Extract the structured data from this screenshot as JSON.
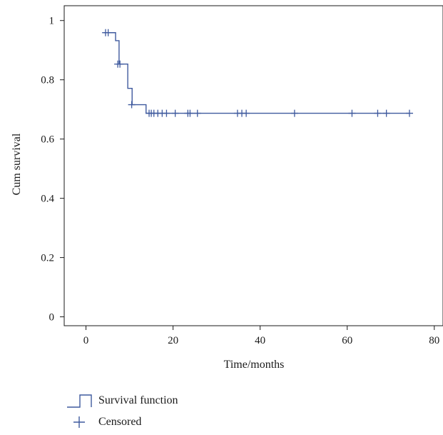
{
  "chart_data": {
    "type": "line",
    "step": true,
    "xlabel": "Time/months",
    "ylabel": "Cum survival",
    "xlim": [
      -5,
      82
    ],
    "ylim": [
      -0.03,
      1.05
    ],
    "xticks": [
      0,
      20,
      40,
      60,
      80
    ],
    "xtick_labels": [
      "0",
      "20",
      "40",
      "60",
      "80"
    ],
    "yticks": [
      0,
      0.2,
      0.4,
      0.6,
      0.8,
      1
    ],
    "ytick_labels": [
      "0",
      "0.2",
      "0.4",
      "0.6",
      "0.8",
      "1"
    ],
    "grid": false,
    "legend_position": "bottom-left",
    "color": "#3f5a9e",
    "series": [
      {
        "name": "Survival function",
        "steps": [
          {
            "x": 4.0,
            "y": 0.959
          },
          {
            "x": 6.8,
            "y": 0.932
          },
          {
            "x": 7.6,
            "y": 0.853
          },
          {
            "x": 9.6,
            "y": 0.771
          },
          {
            "x": 10.6,
            "y": 0.716
          },
          {
            "x": 13.8,
            "y": 0.687
          },
          {
            "x": 74.3,
            "y": 0.687
          }
        ]
      },
      {
        "name": "Censored",
        "points": [
          {
            "x": 4.5,
            "y": 0.959
          },
          {
            "x": 5.1,
            "y": 0.959
          },
          {
            "x": 7.3,
            "y": 0.853
          },
          {
            "x": 7.8,
            "y": 0.853
          },
          {
            "x": 10.5,
            "y": 0.716
          },
          {
            "x": 14.5,
            "y": 0.687
          },
          {
            "x": 15.0,
            "y": 0.687
          },
          {
            "x": 15.6,
            "y": 0.687
          },
          {
            "x": 16.5,
            "y": 0.687
          },
          {
            "x": 17.5,
            "y": 0.687
          },
          {
            "x": 18.5,
            "y": 0.687
          },
          {
            "x": 20.5,
            "y": 0.687
          },
          {
            "x": 23.4,
            "y": 0.687
          },
          {
            "x": 23.9,
            "y": 0.687
          },
          {
            "x": 25.6,
            "y": 0.687
          },
          {
            "x": 34.8,
            "y": 0.687
          },
          {
            "x": 35.8,
            "y": 0.687
          },
          {
            "x": 36.8,
            "y": 0.687
          },
          {
            "x": 47.9,
            "y": 0.687
          },
          {
            "x": 61.1,
            "y": 0.687
          },
          {
            "x": 67.0,
            "y": 0.687
          },
          {
            "x": 69.0,
            "y": 0.687
          },
          {
            "x": 74.3,
            "y": 0.687
          }
        ]
      }
    ]
  },
  "legend": {
    "items": [
      {
        "label": "Survival function",
        "icon": "step-line-icon"
      },
      {
        "label": "Censored",
        "icon": "plus-marker-icon"
      }
    ]
  }
}
